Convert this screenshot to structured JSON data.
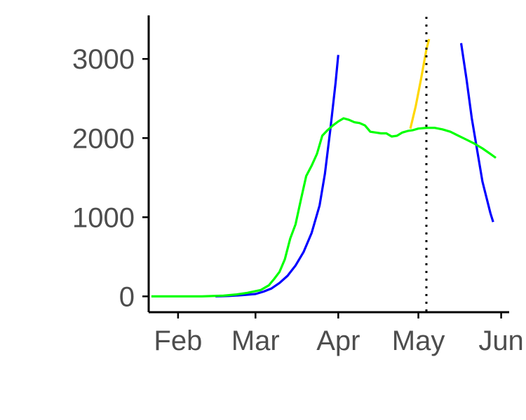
{
  "chart_data": {
    "type": "line",
    "title": "",
    "xlabel": "",
    "ylabel": "",
    "x_axis": {
      "kind": "date",
      "range": [
        "2020-01-21",
        "2020-06-04"
      ],
      "ticks": [
        {
          "date": "2020-02-01",
          "label": "Feb"
        },
        {
          "date": "2020-03-01",
          "label": "Mar"
        },
        {
          "date": "2020-04-01",
          "label": "Apr"
        },
        {
          "date": "2020-05-01",
          "label": "May"
        },
        {
          "date": "2020-06-01",
          "label": "Jun"
        }
      ]
    },
    "y_axis": {
      "range": [
        -200,
        3550
      ],
      "ticks": [
        {
          "value": 0,
          "label": "0"
        },
        {
          "value": 1000,
          "label": "1000"
        },
        {
          "value": 2000,
          "label": "2000"
        },
        {
          "value": 3000,
          "label": "3000"
        }
      ]
    },
    "reference_line": {
      "date": "2020-05-04",
      "style": "dotted",
      "color": "#000000"
    },
    "grid": false,
    "legend": "none",
    "series": [
      {
        "color": "#0000ff",
        "points": [
          {
            "x": "2020-02-15",
            "y": 0
          },
          {
            "x": "2020-02-20",
            "y": 5
          },
          {
            "x": "2020-02-25",
            "y": 15
          },
          {
            "x": "2020-03-01",
            "y": 30
          },
          {
            "x": "2020-03-04",
            "y": 60
          },
          {
            "x": "2020-03-07",
            "y": 100
          },
          {
            "x": "2020-03-10",
            "y": 170
          },
          {
            "x": "2020-03-13",
            "y": 260
          },
          {
            "x": "2020-03-16",
            "y": 390
          },
          {
            "x": "2020-03-19",
            "y": 560
          },
          {
            "x": "2020-03-22",
            "y": 800
          },
          {
            "x": "2020-03-25",
            "y": 1150
          },
          {
            "x": "2020-03-27",
            "y": 1550
          },
          {
            "x": "2020-03-29",
            "y": 2100
          },
          {
            "x": "2020-03-31",
            "y": 2700
          },
          {
            "x": "2020-04-01",
            "y": 3050
          }
        ]
      },
      {
        "color": "#0000ff",
        "points": [
          {
            "x": "2020-05-17",
            "y": 3200
          },
          {
            "x": "2020-05-19",
            "y": 2750
          },
          {
            "x": "2020-05-21",
            "y": 2250
          },
          {
            "x": "2020-05-23",
            "y": 1850
          },
          {
            "x": "2020-05-25",
            "y": 1450
          },
          {
            "x": "2020-05-28",
            "y": 1050
          },
          {
            "x": "2020-05-29",
            "y": 940
          }
        ]
      },
      {
        "color": "#ffd700",
        "points": [
          {
            "x": "2020-04-28",
            "y": 2120
          },
          {
            "x": "2020-04-30",
            "y": 2400
          },
          {
            "x": "2020-05-02",
            "y": 2750
          },
          {
            "x": "2020-05-04",
            "y": 3120
          },
          {
            "x": "2020-05-05",
            "y": 3250
          }
        ]
      },
      {
        "color": "#00ff00",
        "points": [
          {
            "x": "2020-01-22",
            "y": 0
          },
          {
            "x": "2020-02-01",
            "y": 0
          },
          {
            "x": "2020-02-10",
            "y": 0
          },
          {
            "x": "2020-02-18",
            "y": 10
          },
          {
            "x": "2020-02-23",
            "y": 25
          },
          {
            "x": "2020-02-27",
            "y": 45
          },
          {
            "x": "2020-03-03",
            "y": 80
          },
          {
            "x": "2020-03-06",
            "y": 140
          },
          {
            "x": "2020-03-08",
            "y": 220
          },
          {
            "x": "2020-03-10",
            "y": 310
          },
          {
            "x": "2020-03-12",
            "y": 470
          },
          {
            "x": "2020-03-14",
            "y": 730
          },
          {
            "x": "2020-03-16",
            "y": 910
          },
          {
            "x": "2020-03-18",
            "y": 1220
          },
          {
            "x": "2020-03-20",
            "y": 1520
          },
          {
            "x": "2020-03-22",
            "y": 1650
          },
          {
            "x": "2020-03-24",
            "y": 1800
          },
          {
            "x": "2020-03-26",
            "y": 2030
          },
          {
            "x": "2020-03-28",
            "y": 2100
          },
          {
            "x": "2020-03-30",
            "y": 2160
          },
          {
            "x": "2020-04-01",
            "y": 2210
          },
          {
            "x": "2020-04-03",
            "y": 2250
          },
          {
            "x": "2020-04-05",
            "y": 2230
          },
          {
            "x": "2020-04-07",
            "y": 2200
          },
          {
            "x": "2020-04-09",
            "y": 2190
          },
          {
            "x": "2020-04-11",
            "y": 2160
          },
          {
            "x": "2020-04-13",
            "y": 2080
          },
          {
            "x": "2020-04-15",
            "y": 2070
          },
          {
            "x": "2020-04-17",
            "y": 2060
          },
          {
            "x": "2020-04-19",
            "y": 2060
          },
          {
            "x": "2020-04-21",
            "y": 2020
          },
          {
            "x": "2020-04-23",
            "y": 2030
          },
          {
            "x": "2020-04-25",
            "y": 2070
          },
          {
            "x": "2020-04-27",
            "y": 2090
          },
          {
            "x": "2020-04-29",
            "y": 2100
          },
          {
            "x": "2020-05-01",
            "y": 2120
          },
          {
            "x": "2020-05-04",
            "y": 2130
          },
          {
            "x": "2020-05-07",
            "y": 2130
          },
          {
            "x": "2020-05-10",
            "y": 2110
          },
          {
            "x": "2020-05-13",
            "y": 2080
          },
          {
            "x": "2020-05-16",
            "y": 2030
          },
          {
            "x": "2020-05-19",
            "y": 1980
          },
          {
            "x": "2020-05-22",
            "y": 1930
          },
          {
            "x": "2020-05-25",
            "y": 1870
          },
          {
            "x": "2020-05-28",
            "y": 1800
          },
          {
            "x": "2020-05-30",
            "y": 1750
          }
        ]
      }
    ]
  }
}
